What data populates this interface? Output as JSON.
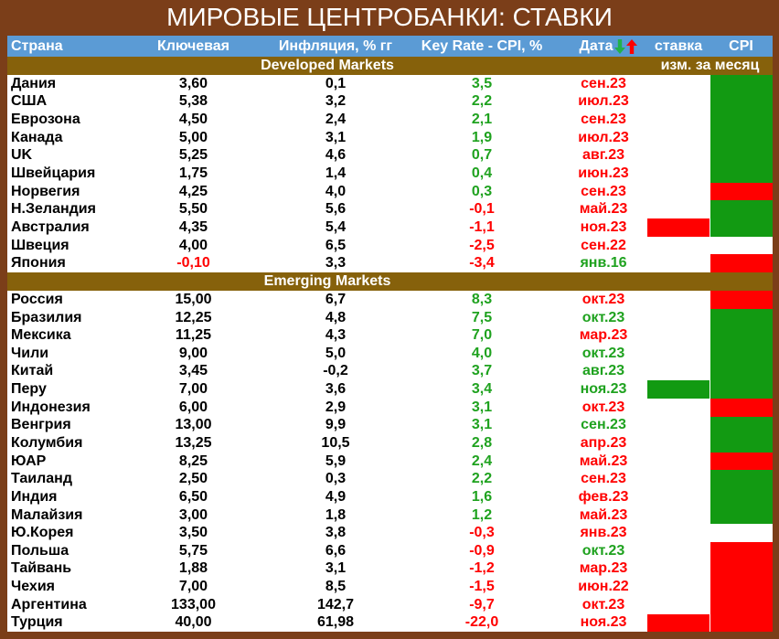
{
  "title": "МИРОВЫЕ ЦЕНТРОБАНКИ: СТАВКИ",
  "header": {
    "country": "Страна",
    "key_rate": "Ключевая",
    "inflation": "Инфляция, % гг",
    "real_rate": "Key Rate - CPI, %",
    "date": "Дата",
    "date_icons": [
      "green-down-arrow-icon",
      "red-up-arrow-icon"
    ],
    "rate_change": "ставка",
    "cpi_change": "CPI"
  },
  "colors": {
    "frame": "#7B3E19",
    "header": "#5B9BD5",
    "section": "#86610B",
    "positive": "#1FA21F",
    "negative": "#FF0000",
    "up_fill": "#FF0000",
    "down_fill": "#129A12",
    "none_fill": "#FFFFFF"
  },
  "sections": [
    {
      "name": "Developed Markets",
      "note": "изм. за месяц",
      "rows": [
        {
          "country": "Дания",
          "key_rate": "3,60",
          "inflation": "0,1",
          "real_rate": "3,5",
          "date": "сен.23",
          "date_dir": 1,
          "rate_change": 0,
          "cpi_change": -1
        },
        {
          "country": "США",
          "key_rate": "5,38",
          "inflation": "3,2",
          "real_rate": "2,2",
          "date": "июл.23",
          "date_dir": 1,
          "rate_change": 0,
          "cpi_change": -1
        },
        {
          "country": "Еврозона",
          "key_rate": "4,50",
          "inflation": "2,4",
          "real_rate": "2,1",
          "date": "сен.23",
          "date_dir": 1,
          "rate_change": 0,
          "cpi_change": -1
        },
        {
          "country": "Канада",
          "key_rate": "5,00",
          "inflation": "3,1",
          "real_rate": "1,9",
          "date": "июл.23",
          "date_dir": 1,
          "rate_change": 0,
          "cpi_change": -1
        },
        {
          "country": "UK",
          "key_rate": "5,25",
          "inflation": "4,6",
          "real_rate": "0,7",
          "date": "авг.23",
          "date_dir": 1,
          "rate_change": 0,
          "cpi_change": -1
        },
        {
          "country": "Швейцария",
          "key_rate": "1,75",
          "inflation": "1,4",
          "real_rate": "0,4",
          "date": "июн.23",
          "date_dir": 1,
          "rate_change": 0,
          "cpi_change": -1
        },
        {
          "country": "Норвегия",
          "key_rate": "4,25",
          "inflation": "4,0",
          "real_rate": "0,3",
          "date": "сен.23",
          "date_dir": 1,
          "rate_change": 0,
          "cpi_change": 1
        },
        {
          "country": "Н.Зеландия",
          "key_rate": "5,50",
          "inflation": "5,6",
          "real_rate": "-0,1",
          "date": "май.23",
          "date_dir": 1,
          "rate_change": 0,
          "cpi_change": -1
        },
        {
          "country": "Австралия",
          "key_rate": "4,35",
          "inflation": "5,4",
          "real_rate": "-1,1",
          "date": "ноя.23",
          "date_dir": 1,
          "rate_change": 1,
          "cpi_change": -1
        },
        {
          "country": "Швеция",
          "key_rate": "4,00",
          "inflation": "6,5",
          "real_rate": "-2,5",
          "date": "сен.22",
          "date_dir": 1,
          "rate_change": 0,
          "cpi_change": 0
        },
        {
          "country": "Япония",
          "key_rate": "-0,10",
          "inflation": "3,3",
          "real_rate": "-3,4",
          "date": "янв.16",
          "date_dir": -1,
          "rate_change": 0,
          "cpi_change": 1
        }
      ]
    },
    {
      "name": "Emerging Markets",
      "rows": [
        {
          "country": "Россия",
          "key_rate": "15,00",
          "inflation": "6,7",
          "real_rate": "8,3",
          "date": "окт.23",
          "date_dir": 1,
          "rate_change": 0,
          "cpi_change": 1
        },
        {
          "country": "Бразилия",
          "key_rate": "12,25",
          "inflation": "4,8",
          "real_rate": "7,5",
          "date": "окт.23",
          "date_dir": -1,
          "rate_change": 0,
          "cpi_change": -1
        },
        {
          "country": "Мексика",
          "key_rate": "11,25",
          "inflation": "4,3",
          "real_rate": "7,0",
          "date": "мар.23",
          "date_dir": 1,
          "rate_change": 0,
          "cpi_change": -1
        },
        {
          "country": "Чили",
          "key_rate": "9,00",
          "inflation": "5,0",
          "real_rate": "4,0",
          "date": "окт.23",
          "date_dir": -1,
          "rate_change": 0,
          "cpi_change": -1
        },
        {
          "country": "Китай",
          "key_rate": "3,45",
          "inflation": "-0,2",
          "real_rate": "3,7",
          "date": "авг.23",
          "date_dir": -1,
          "rate_change": 0,
          "cpi_change": -1
        },
        {
          "country": "Перу",
          "key_rate": "7,00",
          "inflation": "3,6",
          "real_rate": "3,4",
          "date": "ноя.23",
          "date_dir": -1,
          "rate_change": -1,
          "cpi_change": -1
        },
        {
          "country": "Индонезия",
          "key_rate": "6,00",
          "inflation": "2,9",
          "real_rate": "3,1",
          "date": "окт.23",
          "date_dir": 1,
          "rate_change": 0,
          "cpi_change": 1
        },
        {
          "country": "Венгрия",
          "key_rate": "13,00",
          "inflation": "9,9",
          "real_rate": "3,1",
          "date": "сен.23",
          "date_dir": -1,
          "rate_change": 0,
          "cpi_change": -1
        },
        {
          "country": "Колумбия",
          "key_rate": "13,25",
          "inflation": "10,5",
          "real_rate": "2,8",
          "date": "апр.23",
          "date_dir": 1,
          "rate_change": 0,
          "cpi_change": -1
        },
        {
          "country": "ЮАР",
          "key_rate": "8,25",
          "inflation": "5,9",
          "real_rate": "2,4",
          "date": "май.23",
          "date_dir": 1,
          "rate_change": 0,
          "cpi_change": 1
        },
        {
          "country": "Таиланд",
          "key_rate": "2,50",
          "inflation": "0,3",
          "real_rate": "2,2",
          "date": "сен.23",
          "date_dir": 1,
          "rate_change": 0,
          "cpi_change": -1
        },
        {
          "country": "Индия",
          "key_rate": "6,50",
          "inflation": "4,9",
          "real_rate": "1,6",
          "date": "фев.23",
          "date_dir": 1,
          "rate_change": 0,
          "cpi_change": -1
        },
        {
          "country": "Малайзия",
          "key_rate": "3,00",
          "inflation": "1,8",
          "real_rate": "1,2",
          "date": "май.23",
          "date_dir": 1,
          "rate_change": 0,
          "cpi_change": -1
        },
        {
          "country": "Ю.Корея",
          "key_rate": "3,50",
          "inflation": "3,8",
          "real_rate": "-0,3",
          "date": "янв.23",
          "date_dir": 1,
          "rate_change": 0,
          "cpi_change": 0
        },
        {
          "country": "Польша",
          "key_rate": "5,75",
          "inflation": "6,6",
          "real_rate": "-0,9",
          "date": "окт.23",
          "date_dir": -1,
          "rate_change": 0,
          "cpi_change": 1
        },
        {
          "country": "Тайвань",
          "key_rate": "1,88",
          "inflation": "3,1",
          "real_rate": "-1,2",
          "date": "мар.23",
          "date_dir": 1,
          "rate_change": 0,
          "cpi_change": 1
        },
        {
          "country": "Чехия",
          "key_rate": "7,00",
          "inflation": "8,5",
          "real_rate": "-1,5",
          "date": "июн.22",
          "date_dir": 1,
          "rate_change": 0,
          "cpi_change": 1
        },
        {
          "country": "Аргентина",
          "key_rate": "133,00",
          "inflation": "142,7",
          "real_rate": "-9,7",
          "date": "окт.23",
          "date_dir": 1,
          "rate_change": 0,
          "cpi_change": 1
        },
        {
          "country": "Турция",
          "key_rate": "40,00",
          "inflation": "61,98",
          "real_rate": "-22,0",
          "date": "ноя.23",
          "date_dir": 1,
          "rate_change": 1,
          "cpi_change": 1
        }
      ]
    }
  ]
}
